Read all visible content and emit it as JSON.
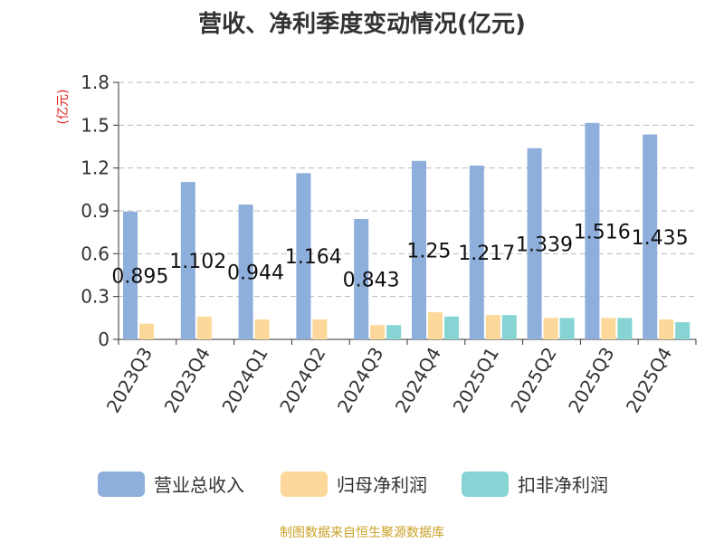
{
  "chart_data": {
    "type": "bar",
    "title": "营收、净利季度变动情况(亿元)",
    "ylabel": "(亿元)",
    "xlabel": "",
    "ylim": [
      0,
      1.8
    ],
    "yticks": [
      "0",
      "0.3",
      "0.6",
      "0.9",
      "1.2",
      "1.5",
      "1.8"
    ],
    "grid": true,
    "legend_position": "bottom",
    "categories": [
      "2023Q3",
      "2023Q4",
      "2024Q1",
      "2024Q2",
      "2024Q3",
      "2024Q4",
      "2025Q1",
      "2025Q2",
      "2025Q3",
      "2025Q4"
    ],
    "series": [
      {
        "name": "营业总收入",
        "color": "#8eaedc",
        "values": [
          0.895,
          1.102,
          0.944,
          1.164,
          0.843,
          1.25,
          1.217,
          1.339,
          1.516,
          1.435
        ],
        "labels": [
          "0.895",
          "1.102",
          "0.944",
          "1.164",
          "0.843",
          "1.25",
          "1.217",
          "1.339",
          "1.516",
          "1.435"
        ]
      },
      {
        "name": "归母净利润",
        "color": "#fcd99a",
        "values": [
          0.11,
          0.16,
          0.14,
          0.14,
          0.1,
          0.19,
          0.17,
          0.15,
          0.15,
          0.14
        ]
      },
      {
        "name": "扣非净利润",
        "color": "#86d5d4",
        "values": [
          null,
          null,
          null,
          null,
          0.1,
          0.16,
          0.17,
          0.15,
          0.15,
          0.12
        ]
      }
    ]
  },
  "source": "制图数据来自恒生聚源数据库"
}
